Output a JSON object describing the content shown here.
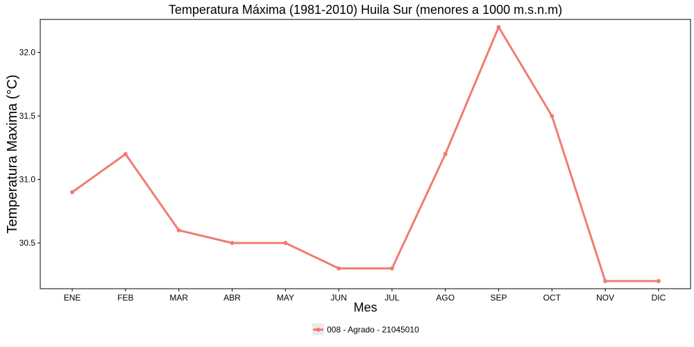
{
  "chart_data": {
    "type": "line",
    "title": "Temperatura Máxima (1981-2010) Huila Sur (menores a 1000 m.s.n.m)",
    "xlabel": "Mes",
    "ylabel": "Temperatura Maxima (°C)",
    "categories": [
      "ENE",
      "FEB",
      "MAR",
      "ABR",
      "MAY",
      "JUN",
      "JUL",
      "AGO",
      "SEP",
      "OCT",
      "NOV",
      "DIC"
    ],
    "series": [
      {
        "name": "008 - Agrado - 21045010",
        "color": "#ef7c71",
        "values": [
          30.9,
          31.2,
          30.6,
          30.5,
          30.5,
          30.3,
          30.3,
          31.2,
          32.2,
          31.5,
          30.2,
          30.2
        ]
      }
    ],
    "yticks": [
      30.5,
      31.0,
      31.5,
      32.0
    ],
    "ytick_labels": [
      "30.5",
      "31.0",
      "31.5",
      "32.0"
    ],
    "ylim": [
      30.14,
      32.26
    ],
    "grid": false,
    "legend_position": "bottom"
  }
}
